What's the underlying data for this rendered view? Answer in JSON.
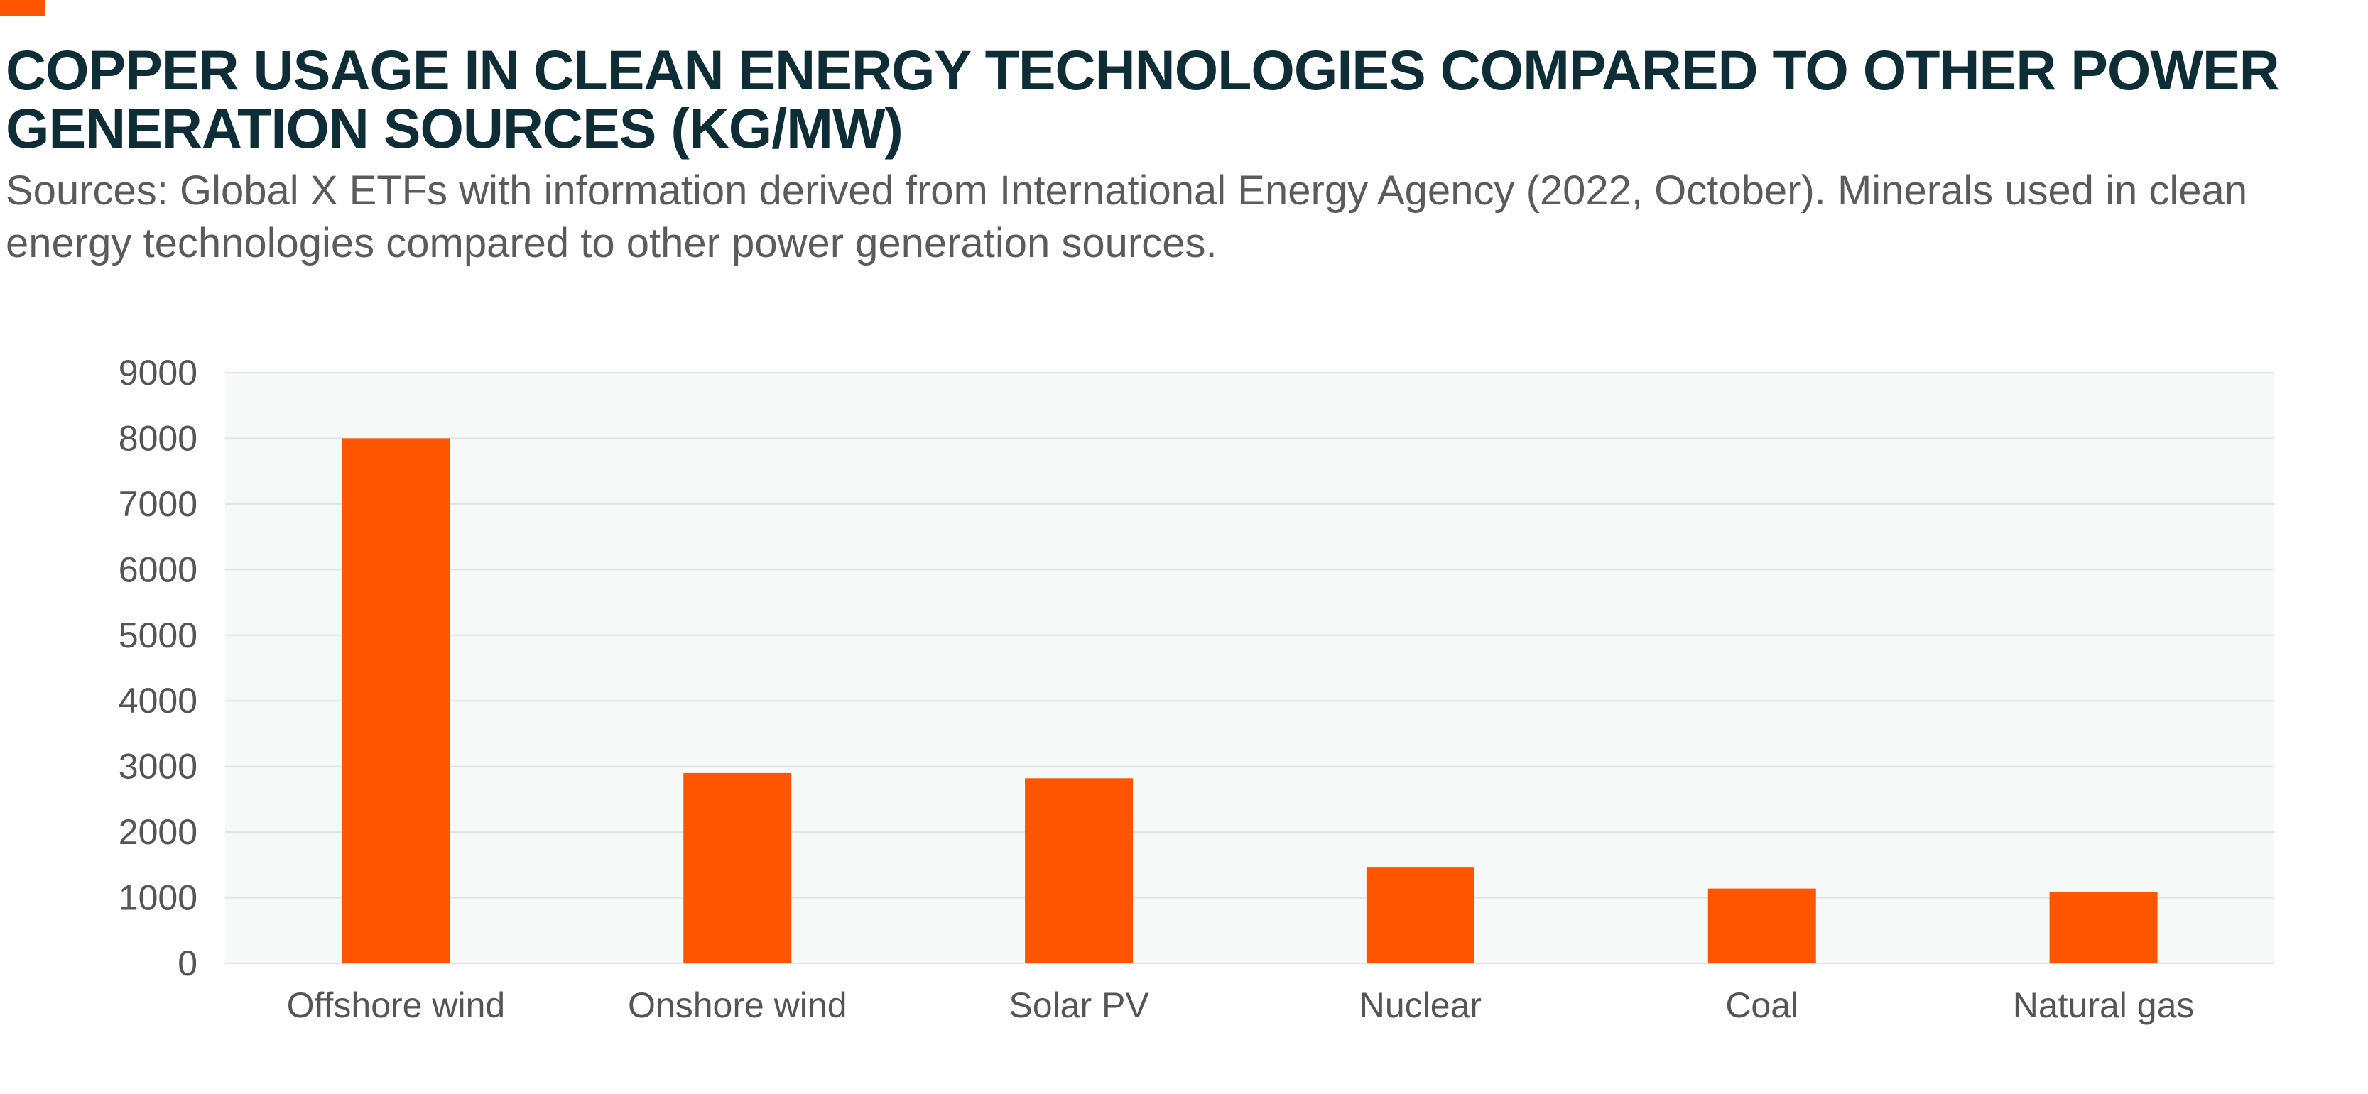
{
  "header": {
    "title": "COPPER USAGE IN CLEAN ENERGY TECHNOLOGIES COMPARED TO OTHER POWER GENERATION SOURCES (KG/MW)",
    "subtitle": "Sources: Global X ETFs with information derived from International Energy Agency (2022, October). Minerals used in clean energy technologies compared to other power generation sources."
  },
  "colors": {
    "accent": "#ff5500",
    "bar": "#ff5500",
    "title": "#0f2d37",
    "subtitle": "#5b5b5b",
    "plot_background": "#f7f8f8",
    "gridline": "#e2e4e4"
  },
  "chart_data": {
    "type": "bar",
    "categories": [
      "Offshore wind",
      "Onshore wind",
      "Solar PV",
      "Nuclear",
      "Coal",
      "Natural gas"
    ],
    "values": [
      8000,
      2900,
      2820,
      1470,
      1140,
      1090
    ],
    "ylim": [
      0,
      9000
    ],
    "yticks": [
      0,
      1000,
      2000,
      3000,
      4000,
      5000,
      6000,
      7000,
      8000,
      9000
    ],
    "grid": true,
    "legend": "none",
    "xlabel": "",
    "ylabel": ""
  }
}
